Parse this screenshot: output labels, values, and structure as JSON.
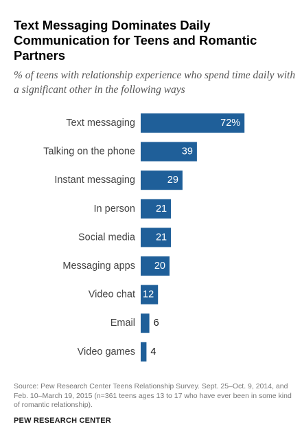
{
  "title": "Text Messaging Dominates Daily Communication for Teens and Romantic Partners",
  "subtitle": "% of teens with relationship experience who spend time daily with a significant other in the following ways",
  "source": "Source:  Pew Research Center Teens Relationship Survey. Sept. 25–Oct. 9, 2014, and Feb. 10–March 19, 2015 (n=361 teens ages 13 to 17 who have ever been in some kind of romantic relationship).",
  "brand": "PEW RESEARCH CENTER",
  "colors": {
    "bar": "#1f5f99",
    "label_inside": "#ffffff",
    "label_outside": "#1a1a1a"
  },
  "chart_data": {
    "type": "bar",
    "orientation": "horizontal",
    "categories": [
      "Text messaging",
      "Talking on the phone",
      "Instant messaging",
      "In person",
      "Social media",
      "Messaging apps",
      "Video chat",
      "Email",
      "Video games"
    ],
    "values": [
      72,
      39,
      29,
      21,
      21,
      20,
      12,
      6,
      4
    ],
    "value_labels": [
      "72%",
      "39",
      "29",
      "21",
      "21",
      "20",
      "12",
      "6",
      "4"
    ],
    "unit": "%",
    "xlim": [
      0,
      100
    ],
    "grid": false,
    "legend": "none"
  }
}
